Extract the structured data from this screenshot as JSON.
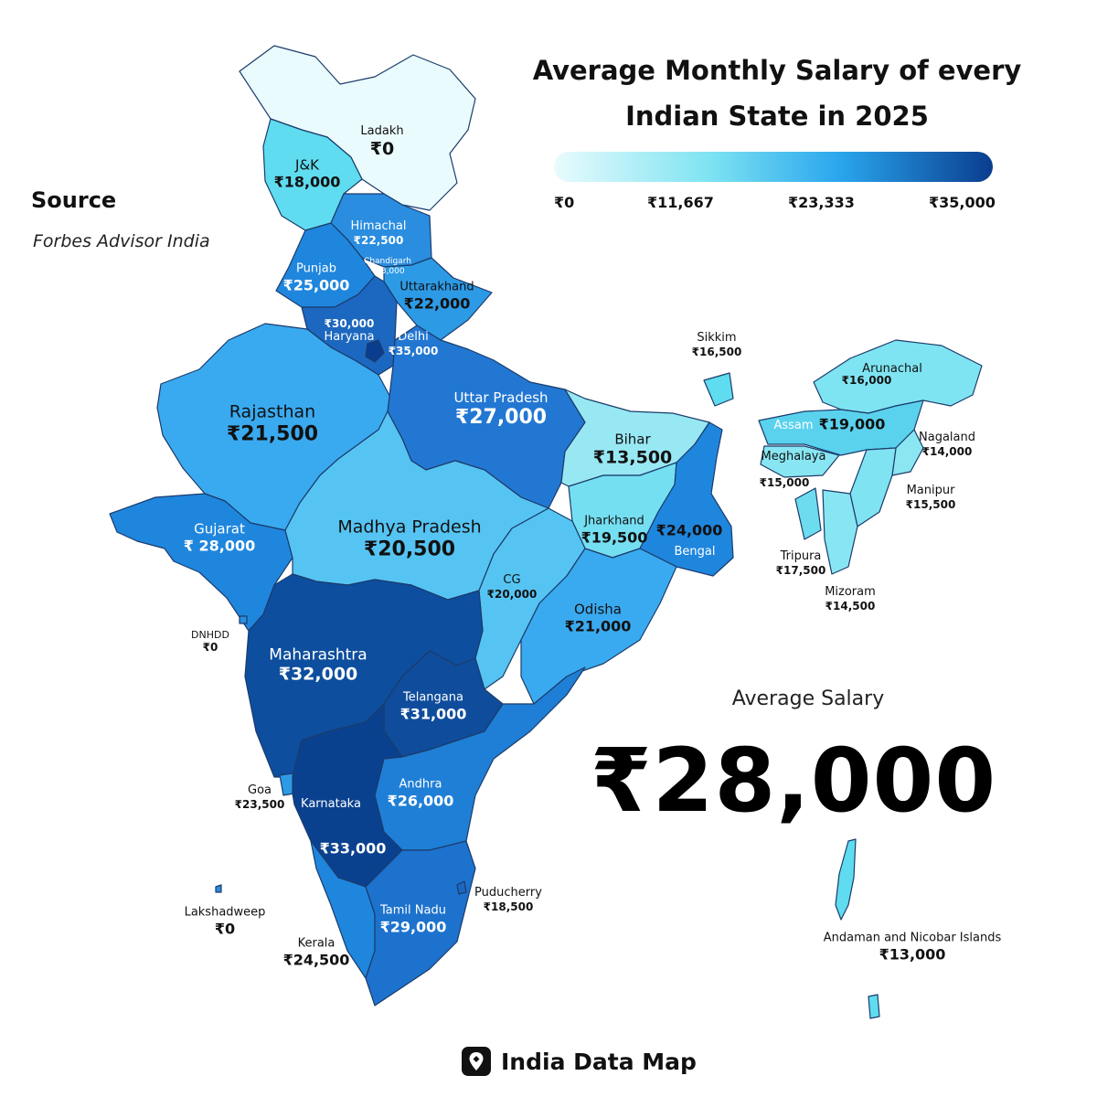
{
  "title": "Average Monthly Salary of every Indian State in 2025",
  "legend": {
    "ticks": [
      "₹0",
      "₹11,667",
      "₹23,333",
      "₹35,000"
    ],
    "min": 0,
    "max": 35000,
    "colors": [
      "#e9fbfd",
      "#7fe4f2",
      "#2aa6ee",
      "#0a3d8e"
    ]
  },
  "source": {
    "heading": "Source",
    "value": "Forbes Advisor India"
  },
  "average": {
    "label": "Average Salary",
    "value": "₹28,000"
  },
  "brand": {
    "name": "India Data Map",
    "icon": "map-pin-icon"
  },
  "regions": [
    {
      "id": "ladakh",
      "name": "Ladakh",
      "value": "₹0"
    },
    {
      "id": "jk",
      "name": "J&K",
      "value": "₹18,000"
    },
    {
      "id": "himachal",
      "name": "Himachal",
      "value": "₹22,500"
    },
    {
      "id": "chandigarh",
      "name": "Chandigarh",
      "value": "₹23,000"
    },
    {
      "id": "punjab",
      "name": "Punjab",
      "value": "₹25,000"
    },
    {
      "id": "uttarakhand",
      "name": "Uttarakhand",
      "value": "₹22,000"
    },
    {
      "id": "haryana",
      "name": "Haryana",
      "value": "₹30,000"
    },
    {
      "id": "delhi",
      "name": "Delhi",
      "value": "₹35,000"
    },
    {
      "id": "rajasthan",
      "name": "Rajasthan",
      "value": "₹21,500"
    },
    {
      "id": "up",
      "name": "Uttar Pradesh",
      "value": "₹27,000"
    },
    {
      "id": "bihar",
      "name": "Bihar",
      "value": "₹13,500"
    },
    {
      "id": "sikkim",
      "name": "Sikkim",
      "value": "₹16,500"
    },
    {
      "id": "arunachal",
      "name": "Arunachal",
      "value": "₹16,000"
    },
    {
      "id": "assam",
      "name": "Assam",
      "value": "₹19,000"
    },
    {
      "id": "meghalaya",
      "name": "Meghalaya",
      "value": "₹15,000"
    },
    {
      "id": "nagaland",
      "name": "Nagaland",
      "value": "₹14,000"
    },
    {
      "id": "manipur",
      "name": "Manipur",
      "value": "₹15,500"
    },
    {
      "id": "tripura",
      "name": "Tripura",
      "value": "₹17,500"
    },
    {
      "id": "mizoram",
      "name": "Mizoram",
      "value": "₹14,500"
    },
    {
      "id": "gujarat",
      "name": "Gujarat",
      "value": "₹ 28,000"
    },
    {
      "id": "mp",
      "name": "Madhya Pradesh",
      "value": "₹20,500"
    },
    {
      "id": "jharkhand",
      "name": "Jharkhand",
      "value": "₹19,500"
    },
    {
      "id": "bengal",
      "name": "Bengal",
      "value": "₹24,000"
    },
    {
      "id": "cg",
      "name": "CG",
      "value": "₹20,000"
    },
    {
      "id": "odisha",
      "name": "Odisha",
      "value": "₹21,000"
    },
    {
      "id": "dnhdd",
      "name": "DNHDD",
      "value": "₹0"
    },
    {
      "id": "maharashtra",
      "name": "Maharashtra",
      "value": "₹32,000"
    },
    {
      "id": "telangana",
      "name": "Telangana",
      "value": "₹31,000"
    },
    {
      "id": "goa",
      "name": "Goa",
      "value": "₹23,500"
    },
    {
      "id": "karnataka",
      "name": "Karnataka",
      "value": "₹33,000"
    },
    {
      "id": "andhra",
      "name": "Andhra",
      "value": "₹26,000"
    },
    {
      "id": "puducherry",
      "name": "Puducherry",
      "value": "₹18,500"
    },
    {
      "id": "lakshadweep",
      "name": "Lakshadweep",
      "value": "₹0"
    },
    {
      "id": "kerala",
      "name": "Kerala",
      "value": "₹24,500"
    },
    {
      "id": "tamilnadu",
      "name": "Tamil Nadu",
      "value": "₹29,000"
    },
    {
      "id": "andaman",
      "name": "Andaman and Nicobar Islands",
      "value": "₹13,000"
    }
  ]
}
